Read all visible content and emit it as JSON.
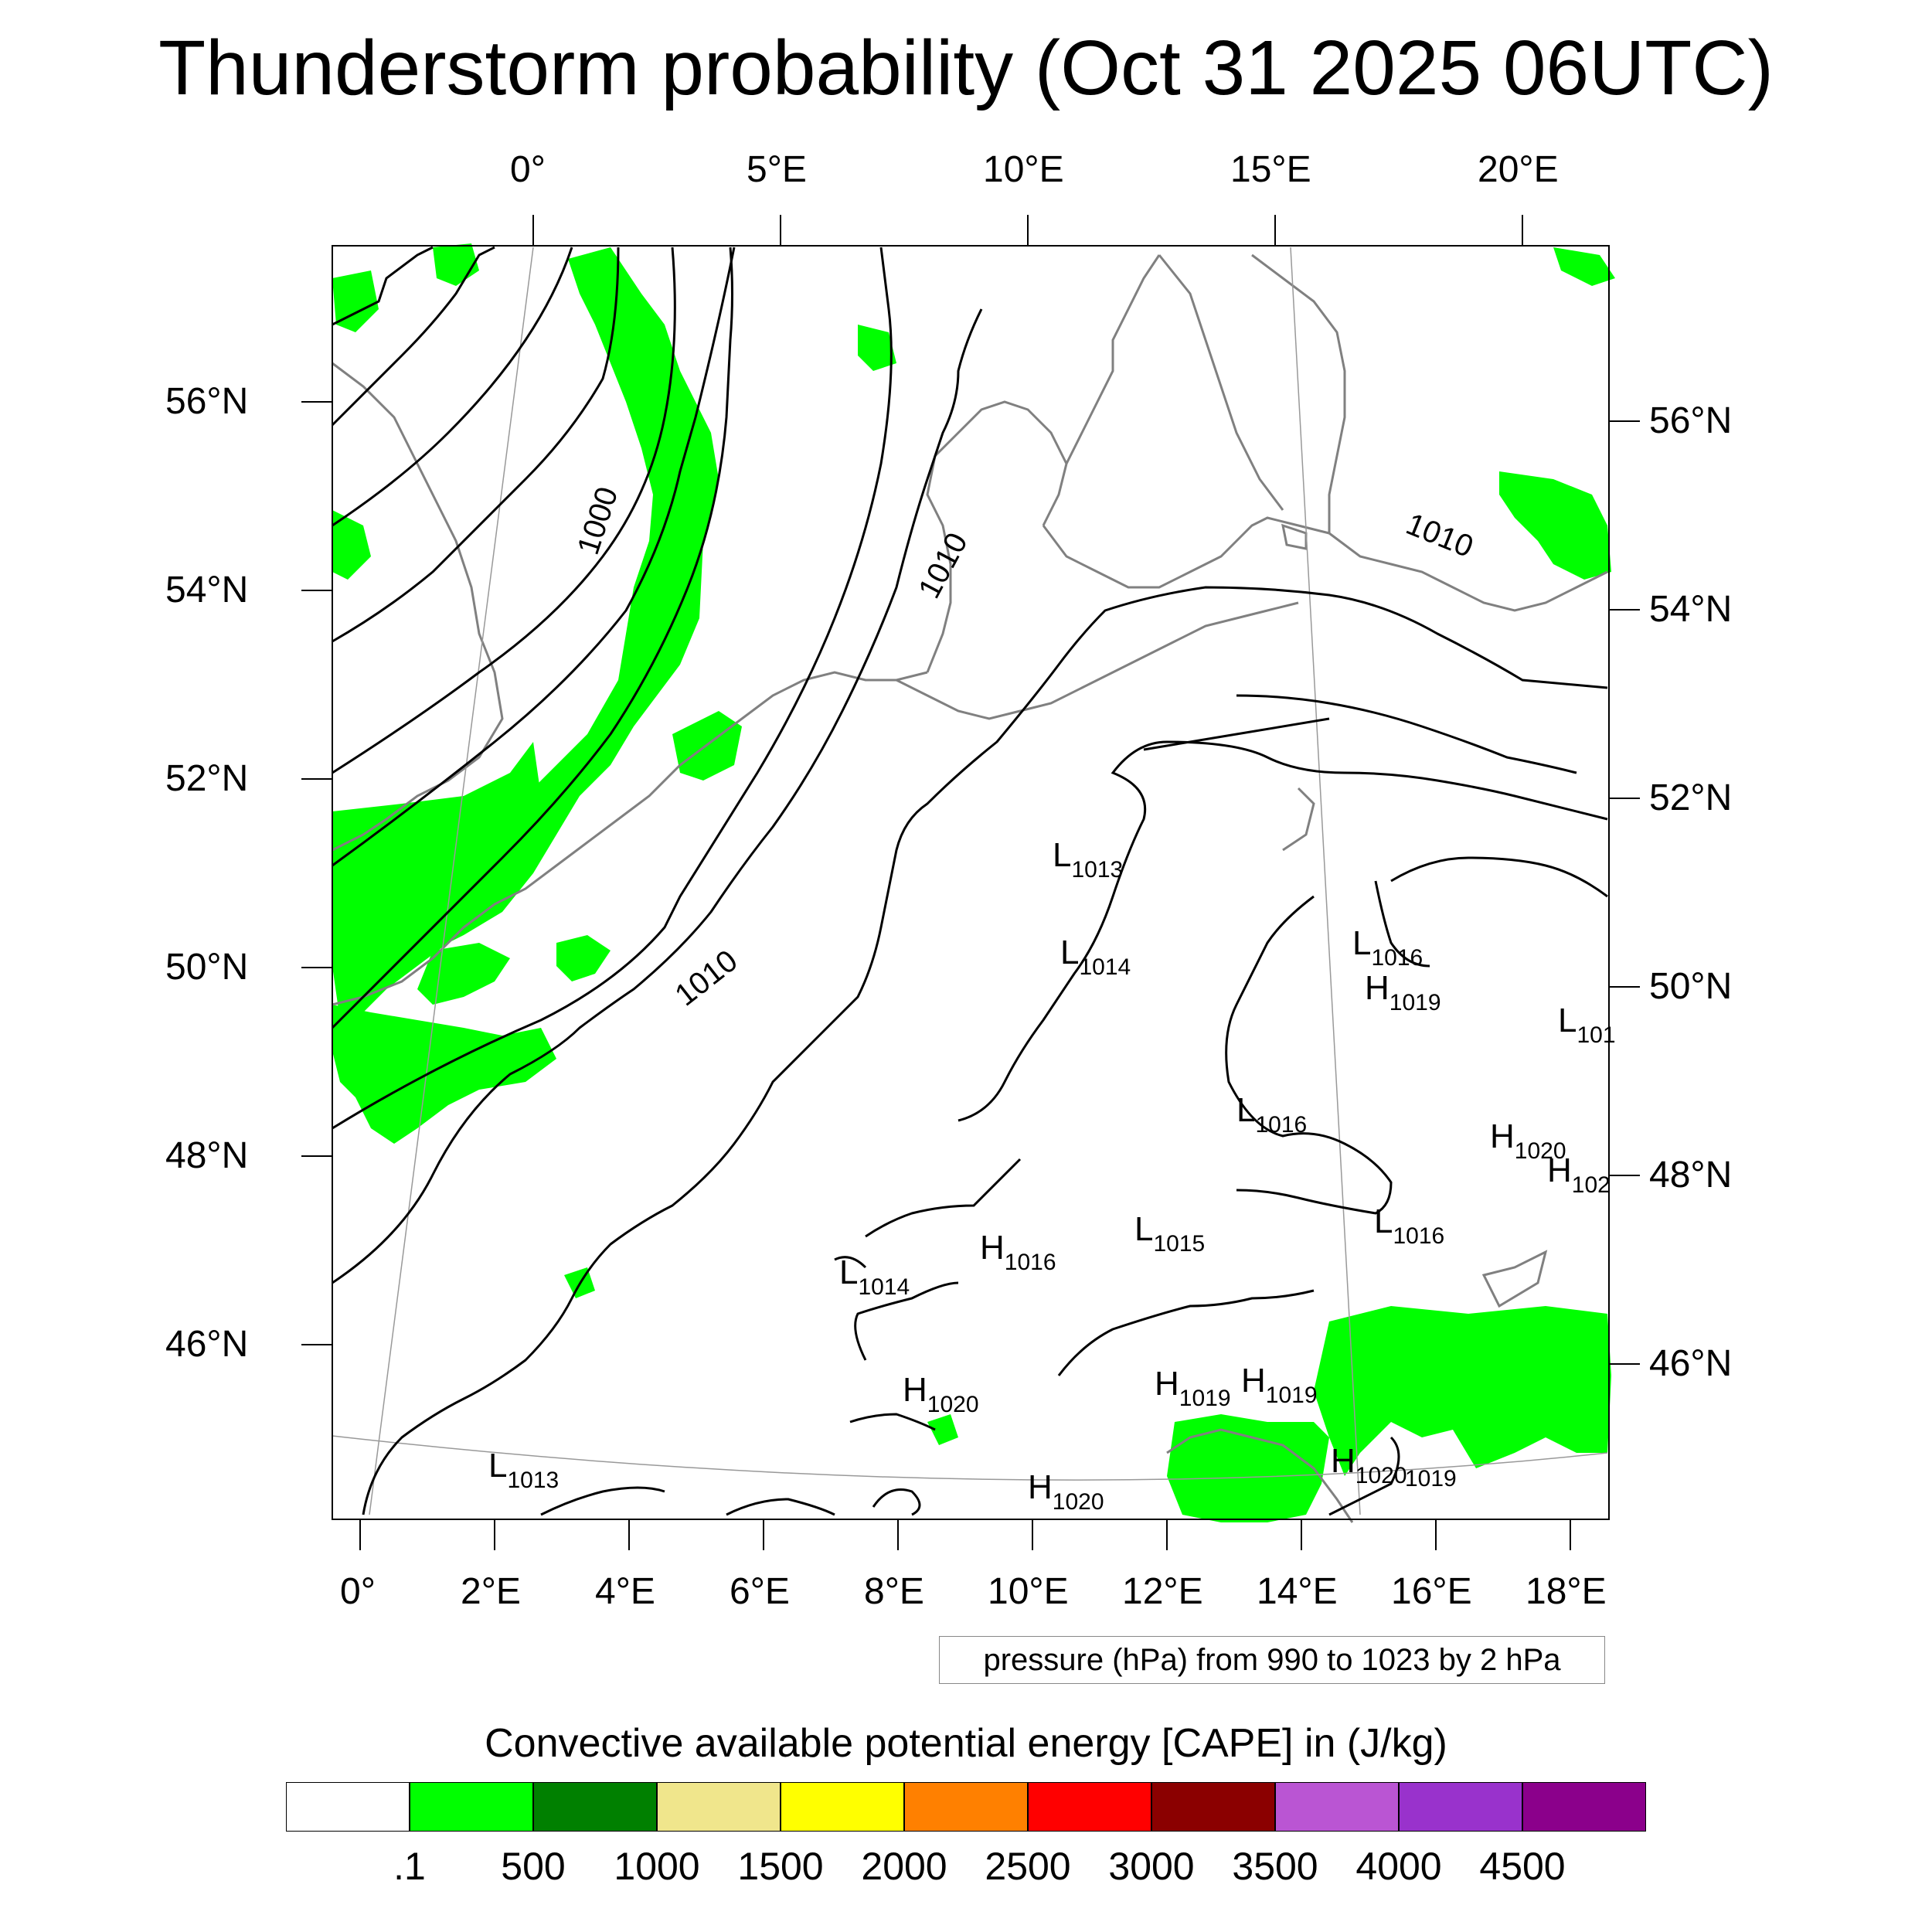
{
  "title": "Thunderstorm probability (Oct 31 2025 06UTC)",
  "top_lon_labels": [
    "0°",
    "5°E",
    "10°E",
    "15°E",
    "20°E"
  ],
  "bottom_lon_labels": [
    "0°",
    "2°E",
    "4°E",
    "6°E",
    "8°E",
    "10°E",
    "12°E",
    "14°E",
    "16°E",
    "18°E"
  ],
  "left_lat_labels": [
    "56°N",
    "54°N",
    "52°N",
    "50°N",
    "48°N",
    "46°N"
  ],
  "right_lat_labels": [
    "56°N",
    "54°N",
    "52°N",
    "50°N",
    "48°N",
    "46°N"
  ],
  "contour_labels": [
    "1000",
    "1010",
    "1010",
    "1010"
  ],
  "pressure_centers": [
    {
      "letter": "L",
      "value": "1013"
    },
    {
      "letter": "L",
      "value": "1014"
    },
    {
      "letter": "L",
      "value": "1016"
    },
    {
      "letter": "H",
      "value": "1019"
    },
    {
      "letter": "L",
      "value": "101"
    },
    {
      "letter": "L",
      "value": "1016"
    },
    {
      "letter": "H",
      "value": "1020"
    },
    {
      "letter": "H",
      "value": "102"
    },
    {
      "letter": "L",
      "value": "1015"
    },
    {
      "letter": "L",
      "value": "1016"
    },
    {
      "letter": "H",
      "value": "1016"
    },
    {
      "letter": "L",
      "value": "1014"
    },
    {
      "letter": "H",
      "value": "1020"
    },
    {
      "letter": "H",
      "value": "1019"
    },
    {
      "letter": "H",
      "value": "1019"
    },
    {
      "letter": "L",
      "value": "1013"
    },
    {
      "letter": "H",
      "value": "1020"
    },
    {
      "letter": "H",
      "value": "1020"
    },
    {
      "letter": "",
      "value": "1019"
    }
  ],
  "pressure_note": "pressure (hPa) from 990 to 1023 by 2 hPa",
  "colorbar": {
    "title": "Convective available potential energy [CAPE] in (J/kg)",
    "colors": [
      "#ffffff",
      "#00ff00",
      "#008000",
      "#f0e68c",
      "#ffff00",
      "#ff8000",
      "#ff0000",
      "#8b0000",
      "#ba55d3",
      "#9932cc",
      "#8b008b"
    ],
    "labels": [
      ".1",
      "500",
      "1000",
      "1500",
      "2000",
      "2500",
      "3000",
      "3500",
      "4000",
      "4500"
    ]
  },
  "colors": {
    "cape_low": "#00ff00",
    "coastline": "#808080",
    "isobar": "#000000"
  }
}
